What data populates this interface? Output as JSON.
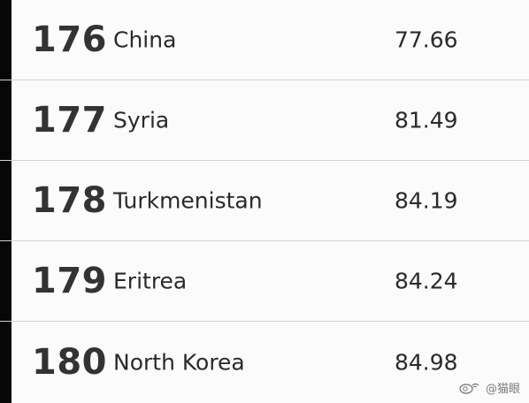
{
  "rows": [
    {
      "rank": "176",
      "country": "China",
      "score": "77.66"
    },
    {
      "rank": "177",
      "country": "Syria",
      "score": "81.49"
    },
    {
      "rank": "178",
      "country": "Turkmenistan",
      "score": "84.19"
    },
    {
      "rank": "179",
      "country": "Eritrea",
      "score": "84.24"
    },
    {
      "rank": "180",
      "country": "North Korea",
      "score": "84.98"
    }
  ],
  "watermark": {
    "icon": "weibo-icon",
    "text": "@猫眼"
  },
  "colors": {
    "accent_bar": "#070707",
    "row_background": "#fbfbfb",
    "divider": "#d2d2d2",
    "rank_text": "#333333",
    "body_text": "#2a2a2a"
  }
}
